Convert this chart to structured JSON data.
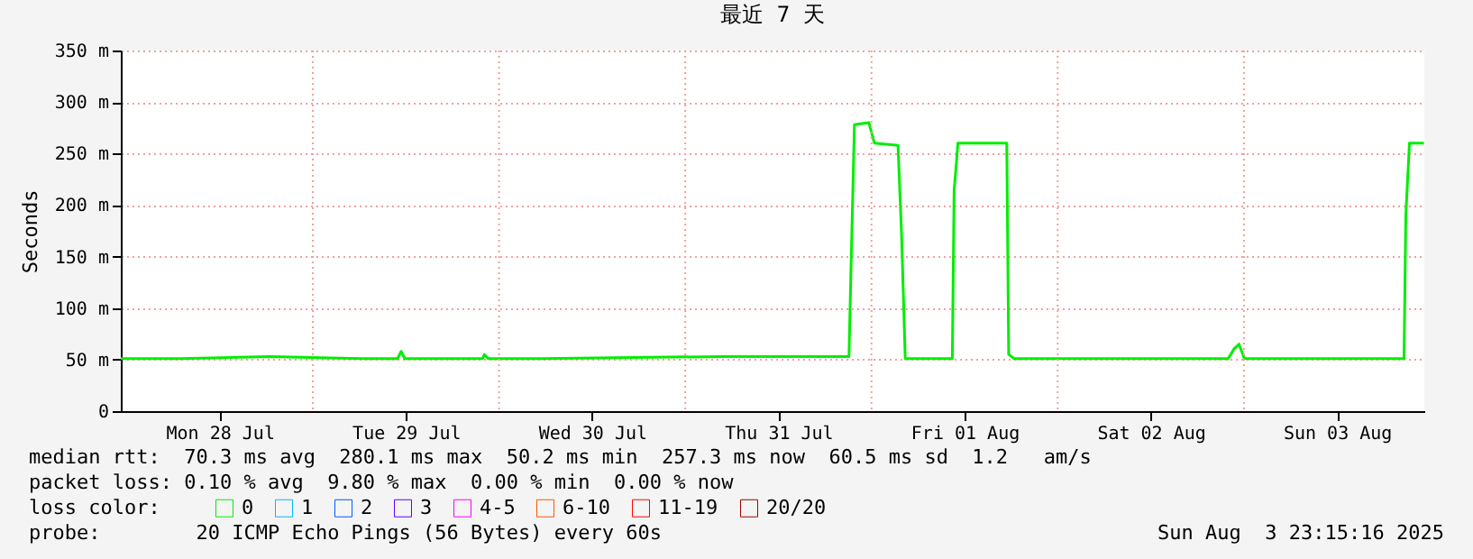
{
  "chart_data": {
    "type": "line",
    "title": "最近 7 天",
    "ylabel": "Seconds",
    "x": [
      "2025-07-27T23:15",
      "2025-07-28T07:00",
      "2025-07-28T18:30",
      "2025-07-29T06:15",
      "2025-07-29T10:55",
      "2025-07-29T11:23",
      "2025-07-29T11:51",
      "2025-07-29T21:53",
      "2025-07-29T22:07",
      "2025-07-29T22:36",
      "2025-07-30T05:35",
      "2025-07-30T17:17",
      "2025-07-31T04:58",
      "2025-07-31T21:06",
      "2025-07-31T21:20",
      "2025-07-31T21:48",
      "2025-07-31T23:40",
      "2025-08-01T00:23",
      "2025-08-01T03:25",
      "2025-08-01T03:53",
      "2025-08-01T04:21",
      "2025-08-01T10:25",
      "2025-08-01T10:39",
      "2025-08-01T10:53",
      "2025-08-01T11:08",
      "2025-08-01T17:26",
      "2025-08-01T17:41",
      "2025-08-01T18:23",
      "2025-08-02T03:45",
      "2025-08-02T15:26",
      "2025-08-02T21:59",
      "2025-08-02T22:41",
      "2025-08-02T23:22",
      "2025-08-03T00:04",
      "2025-08-03T07:47",
      "2025-08-03T20:38",
      "2025-08-03T20:52",
      "2025-08-03T21:20",
      "2025-08-03T23:12"
    ],
    "series": [
      {
        "name": "0",
        "color": "#00ee00",
        "values": [
          51,
          51,
          53,
          51,
          51,
          58,
          51,
          51,
          55,
          51,
          51,
          52,
          53,
          53,
          130,
          278,
          280,
          260,
          258,
          170,
          51,
          51,
          215,
          235,
          260,
          260,
          55,
          51,
          51,
          51,
          51,
          60,
          65,
          51,
          51,
          51,
          190,
          260,
          260
        ]
      },
      {
        "name": "1",
        "color": "#00b8ff",
        "values": [
          null,
          null,
          null,
          null,
          null,
          null,
          null,
          null,
          null,
          null,
          null,
          null,
          null,
          null,
          null,
          null,
          null,
          null,
          null,
          null,
          null,
          null,
          null,
          null,
          null,
          null,
          null,
          null,
          null,
          null,
          null,
          null,
          null,
          null,
          null,
          null,
          null,
          null,
          null
        ]
      },
      {
        "name": "2",
        "color": "#0059ff",
        "values": [
          null,
          null,
          null,
          null,
          null,
          null,
          null,
          null,
          null,
          null,
          null,
          null,
          null,
          null,
          null,
          null,
          null,
          null,
          null,
          null,
          null,
          null,
          null,
          null,
          null,
          null,
          null,
          null,
          null,
          null,
          null,
          null,
          null,
          null,
          null,
          null,
          null,
          null,
          null
        ]
      },
      {
        "name": "3",
        "color": "#5e00ff",
        "values": [
          null,
          null,
          null,
          null,
          null,
          null,
          null,
          null,
          null,
          null,
          null,
          null,
          null,
          null,
          null,
          null,
          null,
          null,
          null,
          null,
          null,
          null,
          null,
          null,
          null,
          null,
          null,
          null,
          null,
          null,
          null,
          null,
          null,
          null,
          null,
          null,
          null,
          null,
          null
        ]
      },
      {
        "name": "4-5",
        "color": "#ff00ff",
        "values": [
          null,
          null,
          null,
          null,
          null,
          null,
          null,
          null,
          null,
          null,
          null,
          null,
          null,
          null,
          null,
          null,
          null,
          null,
          null,
          null,
          null,
          null,
          null,
          null,
          null,
          null,
          null,
          null,
          null,
          null,
          null,
          null,
          null,
          null,
          null,
          null,
          null,
          null,
          null
        ]
      },
      {
        "name": "6-10",
        "color": "#ff5500",
        "values": [
          null,
          null,
          null,
          null,
          null,
          null,
          null,
          null,
          null,
          null,
          null,
          null,
          null,
          null,
          null,
          null,
          null,
          null,
          null,
          null,
          null,
          null,
          null,
          null,
          null,
          null,
          null,
          null,
          null,
          null,
          null,
          null,
          null,
          null,
          null,
          null,
          null,
          null,
          null
        ]
      },
      {
        "name": "11-19",
        "color": "#ff0000",
        "values": [
          null,
          null,
          null,
          null,
          null,
          null,
          null,
          null,
          null,
          null,
          null,
          null,
          null,
          null,
          null,
          null,
          null,
          null,
          null,
          null,
          null,
          null,
          null,
          null,
          null,
          null,
          null,
          null,
          null,
          null,
          null,
          null,
          null,
          null,
          null,
          null,
          null,
          null,
          null
        ]
      },
      {
        "name": "20/20",
        "color": "#a10000",
        "values": [
          null,
          null,
          null,
          null,
          null,
          null,
          null,
          null,
          null,
          null,
          null,
          null,
          null,
          null,
          null,
          null,
          null,
          null,
          null,
          null,
          null,
          null,
          null,
          null,
          null,
          null,
          null,
          null,
          null,
          null,
          null,
          null,
          null,
          null,
          null,
          null,
          null,
          null,
          null
        ]
      }
    ],
    "legend_title": "loss color:",
    "legend": "bottom",
    "xlim": [
      "2025-07-27T23:15",
      "2025-08-03T23:15"
    ],
    "xticks": [
      {
        "value": "2025-07-28T12:00",
        "label": "Mon 28 Jul"
      },
      {
        "value": "2025-07-29T12:00",
        "label": "Tue 29 Jul"
      },
      {
        "value": "2025-07-30T12:00",
        "label": "Wed 30 Jul"
      },
      {
        "value": "2025-07-31T12:00",
        "label": "Thu 31 Jul"
      },
      {
        "value": "2025-08-01T12:00",
        "label": "Fri 01 Aug"
      },
      {
        "value": "2025-08-02T12:00",
        "label": "Sat 02 Aug"
      },
      {
        "value": "2025-08-03T12:00",
        "label": "Sun 03 Aug"
      }
    ],
    "ylim": [
      0,
      350
    ],
    "yticks": [
      0,
      {
        "value": 50,
        "label": "50 m"
      },
      {
        "value": 100,
        "label": "100 m"
      },
      {
        "value": 150,
        "label": "150 m"
      },
      {
        "value": 200,
        "label": "200 m"
      },
      {
        "value": 250,
        "label": "250 m"
      },
      {
        "value": 300,
        "label": "300 m"
      },
      {
        "value": 350,
        "label": "350 m"
      }
    ],
    "grid": "y",
    "ref_lines": [
      {
        "axis": "x",
        "value": "2025-07-29T00:00",
        "color": "#f0a0a0",
        "line_style": "dotted"
      },
      {
        "axis": "x",
        "value": "2025-07-30T00:00",
        "color": "#f0a0a0",
        "line_style": "dotted"
      },
      {
        "axis": "x",
        "value": "2025-07-31T00:00",
        "color": "#f0a0a0",
        "line_style": "dotted"
      },
      {
        "axis": "x",
        "value": "2025-08-01T00:00",
        "color": "#f0a0a0",
        "line_style": "dotted"
      },
      {
        "axis": "x",
        "value": "2025-08-02T00:00",
        "color": "#f0a0a0",
        "line_style": "dotted"
      },
      {
        "axis": "x",
        "value": "2025-08-03T00:00",
        "color": "#f0a0a0",
        "line_style": "dotted"
      }
    ],
    "annotations": [
      "median rtt:  70.3 ms avg  280.1 ms max  50.2 ms min  257.3 ms now  60.5 ms sd  1.2   am/s",
      "packet loss: 0.10 % avg  9.80 % max  0.00 % min  0.00 % now",
      "probe:        20 ICMP Echo Pings (56 Bytes) every 60s",
      "Sun Aug  3 23:15:16 2025"
    ]
  }
}
